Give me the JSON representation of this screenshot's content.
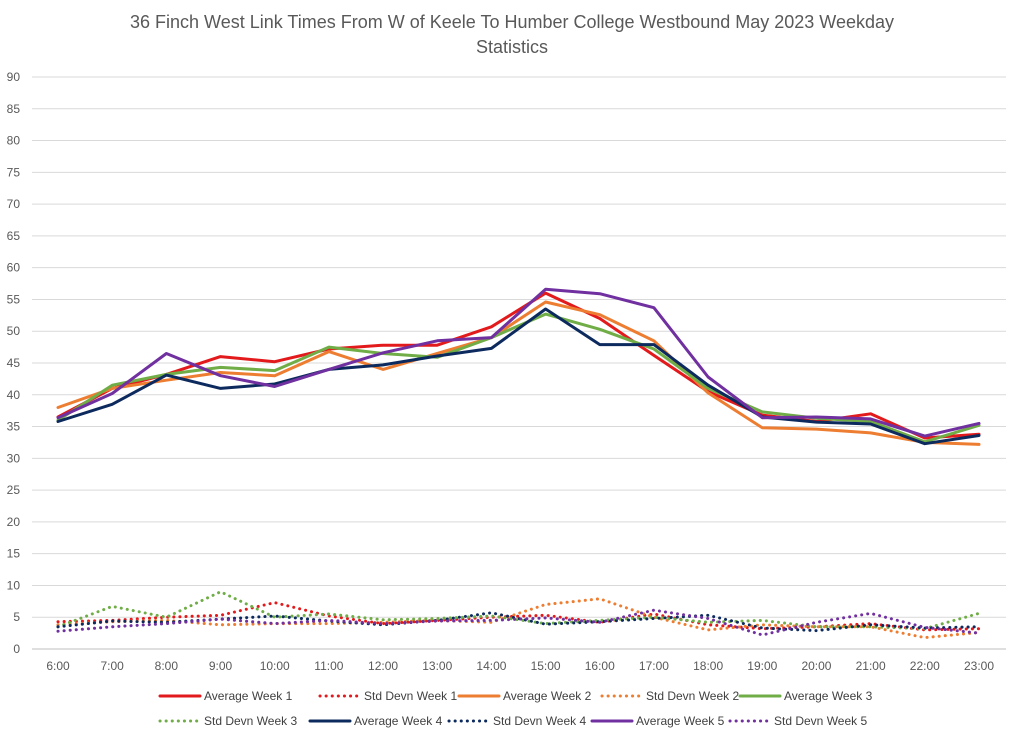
{
  "chart_data": {
    "type": "line",
    "title_line1": "36 Finch West Link Times From W of Keele To Humber College Westbound May 2023 Weekday",
    "title_line2": "Statistics",
    "xlabel": "",
    "ylabel": "",
    "ylim": [
      0,
      90
    ],
    "ytick_step": 5,
    "grid": true,
    "legend_position": "bottom",
    "categories": [
      "6:00",
      "7:00",
      "8:00",
      "9:00",
      "10:00",
      "11:00",
      "12:00",
      "13:00",
      "14:00",
      "15:00",
      "16:00",
      "17:00",
      "18:00",
      "19:00",
      "20:00",
      "21:00",
      "22:00",
      "23:00"
    ],
    "series": [
      {
        "name": "Average Week 1",
        "color": "#e31a1c",
        "style": "solid",
        "values": [
          36.5,
          41.0,
          43.2,
          46.0,
          45.2,
          47.2,
          47.8,
          47.8,
          50.7,
          56.0,
          52.0,
          46.2,
          40.5,
          36.8,
          35.8,
          37.0,
          33.2,
          33.8
        ]
      },
      {
        "name": "Std Devn Week 1",
        "color": "#e31a1c",
        "style": "dotted",
        "values": [
          4.3,
          4.5,
          5.0,
          5.3,
          7.3,
          5.2,
          4.0,
          4.5,
          5.0,
          5.3,
          4.2,
          5.5,
          3.8,
          3.2,
          3.5,
          4.0,
          3.0,
          3.2
        ]
      },
      {
        "name": "Average Week 2",
        "color": "#ed7d31",
        "style": "solid",
        "values": [
          38.0,
          41.0,
          42.3,
          43.5,
          43.0,
          46.8,
          44.0,
          46.5,
          49.0,
          54.6,
          52.6,
          48.5,
          40.3,
          34.8,
          34.6,
          34.0,
          32.5,
          32.2
        ]
      },
      {
        "name": "Std Devn Week 2",
        "color": "#ed7d31",
        "style": "dotted",
        "values": [
          3.8,
          4.3,
          4.5,
          3.8,
          4.0,
          4.0,
          4.2,
          4.5,
          4.2,
          7.0,
          7.9,
          5.0,
          3.0,
          3.8,
          3.5,
          3.5,
          1.8,
          2.6
        ]
      },
      {
        "name": "Average Week 3",
        "color": "#70ad47",
        "style": "solid",
        "values": [
          36.0,
          41.5,
          43.2,
          44.3,
          43.8,
          47.5,
          46.5,
          45.9,
          49.0,
          52.7,
          50.3,
          47.2,
          41.0,
          37.3,
          36.3,
          35.8,
          32.6,
          35.2
        ]
      },
      {
        "name": "Std Devn Week 3",
        "color": "#70ad47",
        "style": "dotted",
        "values": [
          3.5,
          6.7,
          5.0,
          9.0,
          5.0,
          5.5,
          4.6,
          4.8,
          5.2,
          4.0,
          4.5,
          5.0,
          4.2,
          4.5,
          3.5,
          3.5,
          3.2,
          5.6
        ]
      },
      {
        "name": "Average Week 4",
        "color": "#0d2a5e",
        "style": "solid",
        "values": [
          35.8,
          38.5,
          43.1,
          41.0,
          41.7,
          44.0,
          44.7,
          46.1,
          47.3,
          53.5,
          47.9,
          47.9,
          41.5,
          36.5,
          35.7,
          35.4,
          32.3,
          33.6
        ]
      },
      {
        "name": "Std Devn Week 4",
        "color": "#0d2a5e",
        "style": "dotted",
        "values": [
          3.5,
          4.4,
          4.2,
          4.7,
          5.2,
          4.4,
          3.8,
          4.5,
          5.7,
          3.9,
          4.3,
          4.8,
          5.3,
          3.3,
          2.9,
          3.8,
          3.3,
          3.5
        ]
      },
      {
        "name": "Average Week 5",
        "color": "#7030a0",
        "style": "solid",
        "values": [
          36.4,
          40.2,
          46.5,
          43.0,
          41.3,
          44.0,
          46.6,
          48.5,
          49.0,
          56.6,
          55.9,
          53.7,
          42.8,
          36.4,
          36.5,
          36.2,
          33.5,
          35.5
        ]
      },
      {
        "name": "Std Devn Week 5",
        "color": "#7030a0",
        "style": "dotted",
        "values": [
          2.8,
          3.5,
          4.0,
          4.7,
          4.0,
          4.5,
          4.0,
          4.4,
          4.5,
          4.9,
          4.2,
          6.1,
          4.8,
          2.2,
          4.2,
          5.6,
          3.4,
          2.5
        ]
      }
    ]
  }
}
